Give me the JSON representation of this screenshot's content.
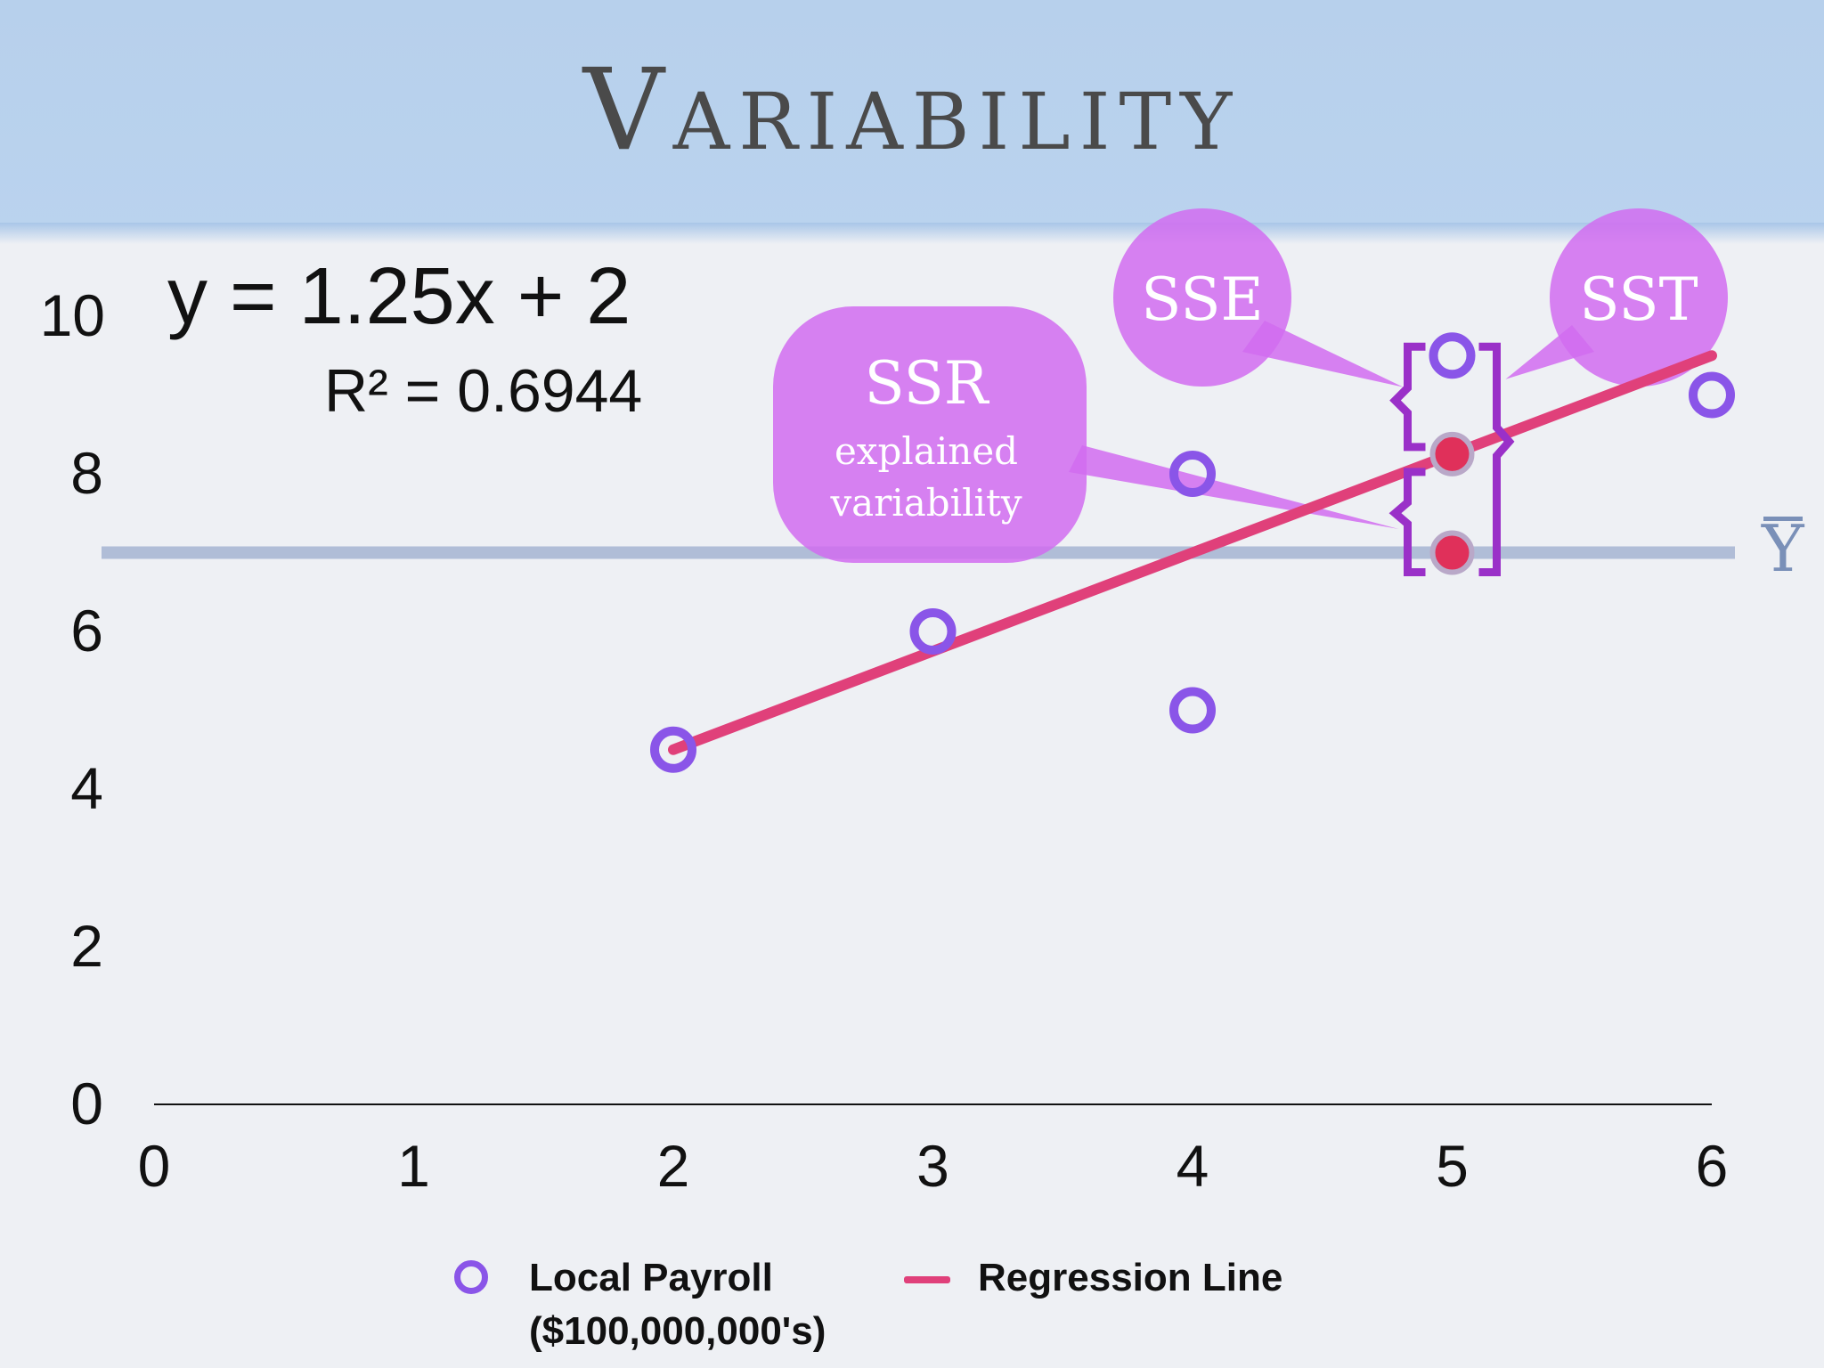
{
  "title": "Variability",
  "equation": "y = 1.25x + 2",
  "r_squared": "R² = 0.6944",
  "mean_symbol": "Y",
  "callouts": {
    "ssr": {
      "label": "SSR",
      "sub1": "explained",
      "sub2": "variability"
    },
    "sse": {
      "label": "SSE"
    },
    "sst": {
      "label": "SST"
    }
  },
  "legend": {
    "points_label_1": "Local Payroll",
    "points_label_2": "($100,000,000's)",
    "line_label": "Regression Line"
  },
  "colors": {
    "points": "#8a55e8",
    "regression": "#e0407a",
    "mean_line": "#aab8d4",
    "bubble": "#d16cf0",
    "bracket": "#9a30c8",
    "fitted_point": "#e0305a"
  },
  "chart_data": {
    "type": "scatter",
    "xlim": [
      0,
      6
    ],
    "ylim": [
      0,
      10
    ],
    "x_ticks": [
      0,
      1,
      2,
      3,
      4,
      5,
      6
    ],
    "y_ticks": [
      0,
      2,
      4,
      6,
      8,
      10
    ],
    "series": [
      {
        "name": "Local Payroll ($100,000,000's)",
        "points": [
          [
            2,
            4.5
          ],
          [
            3,
            6
          ],
          [
            4,
            8
          ],
          [
            4,
            5
          ],
          [
            5,
            9.5
          ],
          [
            6,
            9
          ]
        ]
      },
      {
        "name": "Regression Line",
        "type": "line",
        "points": [
          [
            2,
            4.5
          ],
          [
            6,
            9.5
          ]
        ]
      }
    ],
    "mean_y": 7,
    "highlight": {
      "x": 5,
      "observed": 9.5,
      "fitted": 8.25,
      "mean": 7
    }
  }
}
